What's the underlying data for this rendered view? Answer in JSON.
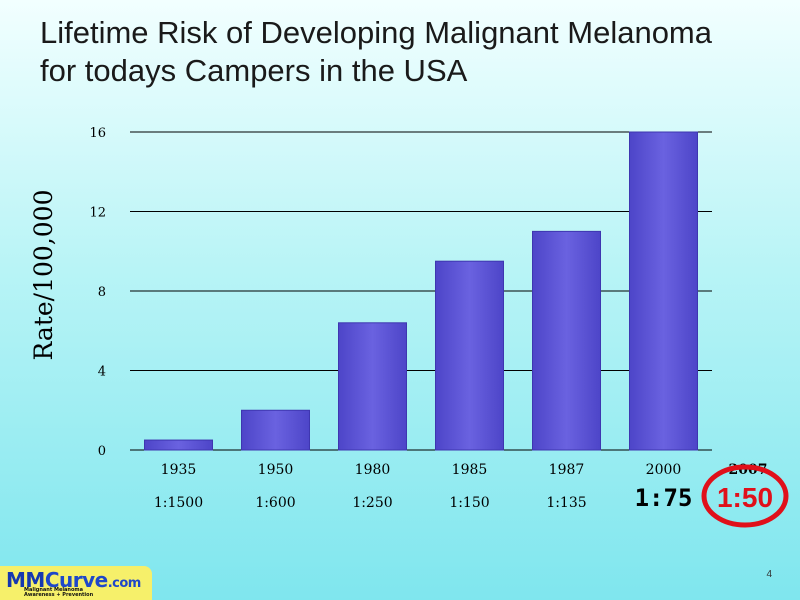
{
  "slide": {
    "title_line1": "Lifetime Risk of Developing Malignant Melanoma",
    "title_line2": "for todays Campers in the USA",
    "page_number": "4"
  },
  "logo": {
    "text_mm": "MM",
    "text_curve": "Curve",
    "text_com": ".com",
    "tagline_line1": "Malignant Melanoma",
    "tagline_line2": "Awareness + Prevention"
  },
  "chart_data": {
    "type": "bar",
    "categories": [
      "1935",
      "1950",
      "1980",
      "1985",
      "1987",
      "2000"
    ],
    "values": [
      0.5,
      2,
      6.4,
      9.5,
      11,
      16
    ],
    "risk_ratios": [
      "1:1500",
      "1:600",
      "1:250",
      "1:150",
      "1:135",
      "1:75"
    ],
    "extra_category": "2007",
    "extra_ratio": "1:50",
    "ylabel": "Rate/100,000",
    "ylim": [
      0,
      16
    ],
    "yticks": [
      0,
      4,
      8,
      12,
      16
    ],
    "grid": true,
    "bar_color": "#5c54d4",
    "highlight_color": "#e0101a"
  }
}
